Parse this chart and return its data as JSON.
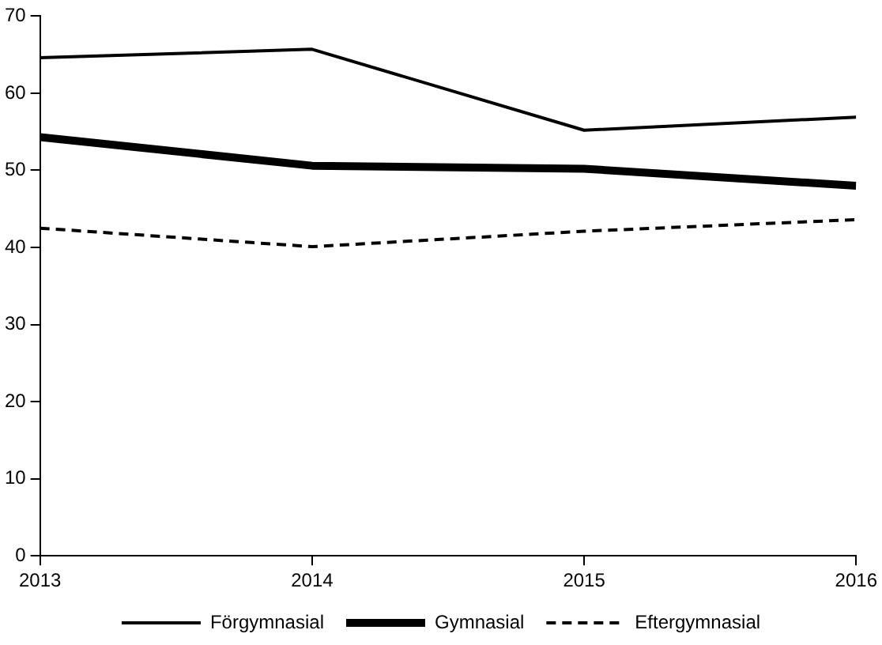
{
  "chart_data": {
    "type": "line",
    "x": [
      2013,
      2014,
      2015,
      2016
    ],
    "series": [
      {
        "name": "Förgymnasial",
        "color": "#000000",
        "values": [
          64.6,
          65.7,
          55.2,
          56.9
        ],
        "line_style": "solid"
      },
      {
        "name": "Gymnasial",
        "color": "#000000",
        "values": [
          54.3,
          50.6,
          50.2,
          48.0
        ],
        "line_style": "solid"
      },
      {
        "name": "Eftergymnasial",
        "color": "#000000",
        "values": [
          42.5,
          40.1,
          42.1,
          43.6
        ],
        "line_style": "dashed"
      }
    ],
    "xlim": [
      2013,
      2016
    ],
    "xticks": [
      2013,
      2014,
      2015,
      2016
    ],
    "ylim": [
      0,
      70
    ],
    "yticks": [
      0,
      10,
      20,
      30,
      40,
      50,
      60,
      70
    ],
    "grid": false,
    "legend": "bottom",
    "marker": "none"
  }
}
